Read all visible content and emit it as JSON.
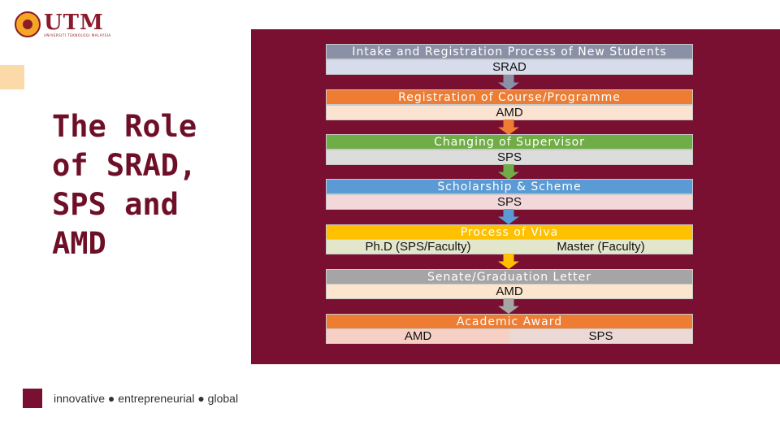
{
  "logo": {
    "text": "UTM",
    "subtitle": "UNIVERSITI TEKNOLOGI MALAYSIA"
  },
  "title": "The Role of SRAD, SPS and AMD",
  "tagline": "innovative ● entrepreneurial ● global",
  "steps": [
    {
      "title": "Intake and Registration Process of New Students",
      "body": "SRAD"
    },
    {
      "title": "Registration of Course/Programme",
      "body": "AMD"
    },
    {
      "title": "Changing of Supervisor",
      "body": "SPS"
    },
    {
      "title": "Scholarship & Scheme",
      "body": "SPS"
    },
    {
      "title": "Process of Viva",
      "body_left": "Ph.D (SPS/Faculty)",
      "body_right": "Master (Faculty)"
    },
    {
      "title": "Senate/Graduation Letter",
      "body": "AMD"
    },
    {
      "title": "Academic Award",
      "body_left": "AMD",
      "body_right": "SPS"
    }
  ],
  "colors": {
    "panel": "#7a1031",
    "title_text": "#6e0f27",
    "step_headers": [
      "#8a91a6",
      "#ee7d33",
      "#70ad47",
      "#5b9bd5",
      "#ffc000",
      "#a5a5a5",
      "#ee7d33"
    ],
    "step_bodies": [
      "#d6dcec",
      "#fbe3d2",
      "#dcdcdc",
      "#f2d8d8",
      "#e2e6cb",
      "#fbe5cc",
      "#f6d0c4"
    ]
  }
}
